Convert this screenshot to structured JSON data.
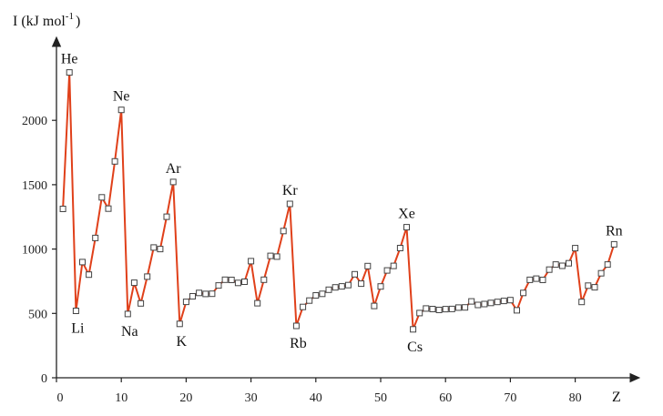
{
  "chart_data": {
    "type": "line",
    "ylabel": "I (kJ mol",
    "ylabel_sup": "-1",
    "ylabel_close": ")",
    "xlabel": "Z",
    "xlim": [
      0,
      88
    ],
    "ylim": [
      0,
      2450
    ],
    "x_ticks": [
      0,
      10,
      20,
      30,
      40,
      50,
      60,
      70,
      80
    ],
    "x_tick_labels": [
      "0",
      "10",
      "20",
      "30",
      "40",
      "50",
      "60",
      "70",
      "80"
    ],
    "y_ticks": [
      0,
      500,
      1000,
      1500,
      2000
    ],
    "y_tick_labels": [
      "0",
      "500",
      "1000",
      "1500",
      "2000"
    ],
    "line_color": "#e0401a",
    "marker": "open-square",
    "grid": false,
    "x": [
      1,
      2,
      3,
      4,
      5,
      6,
      7,
      8,
      9,
      10,
      11,
      12,
      13,
      14,
      15,
      16,
      17,
      18,
      19,
      20,
      21,
      22,
      23,
      24,
      25,
      26,
      27,
      28,
      29,
      30,
      31,
      32,
      33,
      34,
      35,
      36,
      37,
      38,
      39,
      40,
      41,
      42,
      43,
      44,
      45,
      46,
      47,
      48,
      49,
      50,
      51,
      52,
      53,
      54,
      55,
      56,
      57,
      58,
      59,
      60,
      61,
      62,
      63,
      64,
      65,
      66,
      67,
      68,
      69,
      70,
      71,
      72,
      73,
      74,
      75,
      76,
      77,
      78,
      79,
      80,
      81,
      82,
      83,
      84,
      85,
      86
    ],
    "values": [
      1312,
      2372,
      520,
      899,
      801,
      1086,
      1402,
      1314,
      1681,
      2081,
      496,
      738,
      578,
      786,
      1012,
      1000,
      1251,
      1521,
      419,
      590,
      633,
      659,
      651,
      653,
      717,
      762,
      760,
      737,
      746,
      906,
      579,
      762,
      947,
      941,
      1140,
      1351,
      403,
      550,
      600,
      640,
      652,
      684,
      702,
      710,
      720,
      804,
      731,
      868,
      558,
      709,
      834,
      869,
      1008,
      1170,
      376,
      503,
      538,
      534,
      527,
      533,
      535,
      545,
      547,
      593,
      566,
      573,
      581,
      589,
      597,
      603,
      524,
      659,
      761,
      770,
      760,
      840,
      880,
      870,
      890,
      1007,
      589,
      716,
      703,
      812,
      880,
      1037
    ],
    "element_labels": [
      {
        "z": 2,
        "text": "He",
        "pos": "above"
      },
      {
        "z": 3,
        "text": "Li",
        "pos": "below"
      },
      {
        "z": 10,
        "text": "Ne",
        "pos": "above"
      },
      {
        "z": 11,
        "text": "Na",
        "pos": "below"
      },
      {
        "z": 18,
        "text": "Ar",
        "pos": "above"
      },
      {
        "z": 19,
        "text": "K",
        "pos": "below"
      },
      {
        "z": 36,
        "text": "Kr",
        "pos": "above"
      },
      {
        "z": 37,
        "text": "Rb",
        "pos": "below"
      },
      {
        "z": 54,
        "text": "Xe",
        "pos": "above"
      },
      {
        "z": 55,
        "text": "Cs",
        "pos": "below"
      },
      {
        "z": 86,
        "text": "Rn",
        "pos": "above"
      }
    ]
  }
}
